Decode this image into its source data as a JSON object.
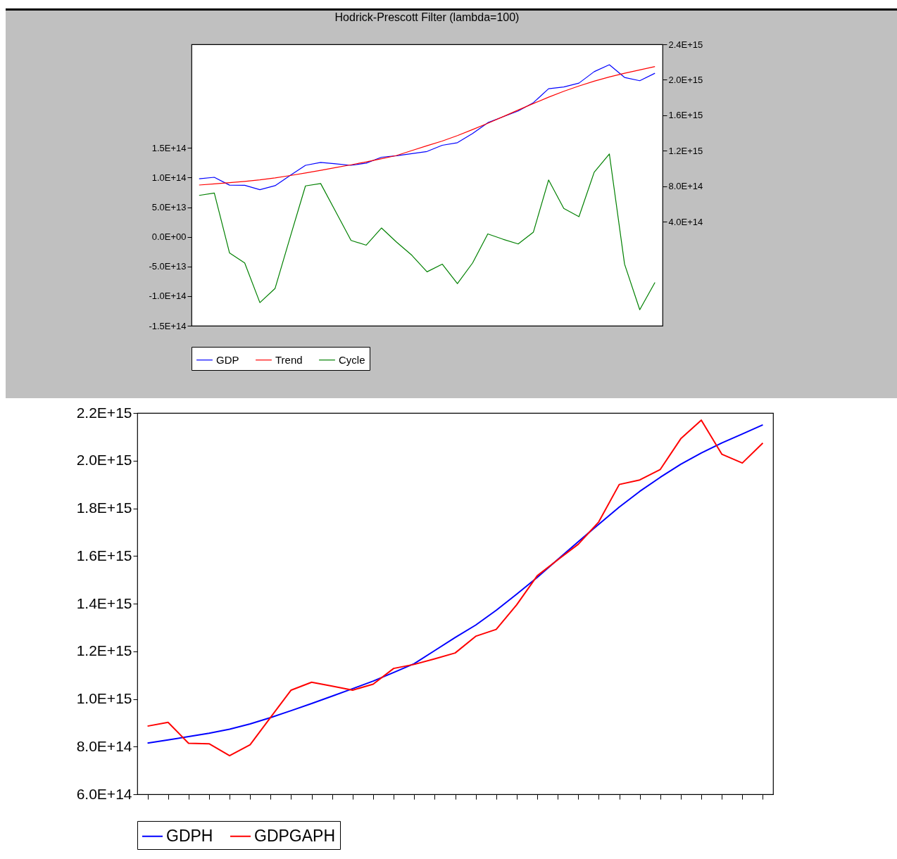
{
  "chart_data": [
    {
      "type": "line",
      "title": "Hodrick-Prescott Filter (lambda=100)",
      "categories": [
        null,
        null,
        null,
        null,
        null,
        null,
        null,
        null,
        null,
        null,
        null,
        null,
        null,
        null,
        null,
        null,
        null,
        null,
        null,
        null,
        null,
        null,
        null,
        null,
        null,
        null,
        null,
        null,
        null,
        null,
        null
      ],
      "series": [
        {
          "name": "GDP",
          "color": "#0000ff",
          "axis": "y2",
          "values": [
            886000000000000.0,
            902000000000000.0,
            814000000000000.0,
            812000000000000.0,
            762000000000000.0,
            808000000000000.0,
            923000000000000.0,
            1037000000000000.0,
            1070000000000000.0,
            1054000000000000.0,
            1037000000000000.0,
            1062000000000000.0,
            1128000000000000.0,
            1145000000000000.0,
            1168000000000000.0,
            1193000000000000.0,
            1263000000000000.0,
            1292000000000000.0,
            1395000000000000.0,
            1517000000000000.0,
            1584000000000000.0,
            1649000000000000.0,
            1743000000000000.0,
            1900000000000000.0,
            1919000000000000.0,
            1963000000000000.0,
            2092000000000000.0,
            2170000000000000.0,
            2027000000000000.0,
            1990000000000000.0,
            2074000000000000.0
          ]
        },
        {
          "name": "Trend",
          "color": "#ff0000",
          "axis": "y2",
          "values": [
            815000000000000.0,
            828000000000000.0,
            842000000000000.0,
            856000000000000.0,
            873000000000000.0,
            895000000000000.0,
            922000000000000.0,
            951000000000000.0,
            981000000000000.0,
            1012000000000000.0,
            1043000000000000.0,
            1075000000000000.0,
            1111000000000000.0,
            1148000000000000.0,
            1203000000000000.0,
            1258000000000000.0,
            1310000000000000.0,
            1372000000000000.0,
            1440000000000000.0,
            1510000000000000.0,
            1585000000000000.0,
            1660000000000000.0,
            1733000000000000.0,
            1805000000000000.0,
            1871000000000000.0,
            1930000000000000.0,
            1985000000000000.0,
            2032000000000000.0,
            2074000000000000.0,
            2112000000000000.0,
            2150000000000000.0
          ]
        },
        {
          "name": "Cycle",
          "color": "#008000",
          "axis": "y",
          "values": [
            70000000000000.0,
            74000000000000.0,
            -27000000000000.0,
            -44000000000000.0,
            -111000000000000.0,
            -87000000000000.0,
            0,
            86000000000000.0,
            90000000000000.0,
            42000000000000.0,
            -6000000000000.0,
            -14000000000000.0,
            15000000000000.0,
            -9000000000000.0,
            -31000000000000.0,
            -59000000000000.0,
            -46000000000000.0,
            -79000000000000.0,
            -44000000000000.0,
            5000000000000.0,
            -4000000000000.0,
            -12000000000000.0,
            8000000000000.0,
            96000000000000.0,
            48000000000000.0,
            34000000000000.0,
            109000000000000.0,
            140000000000000.0,
            -46000000000000.0,
            -123000000000000.0,
            -77000000000000.0
          ]
        }
      ],
      "ylim": [
        -150000000000000.0,
        325000000000000.0
      ],
      "yticks": [
        {
          "value": -150000000000000.0,
          "label": "-1.5E+14"
        },
        {
          "value": -100000000000000.0,
          "label": "-1.0E+14"
        },
        {
          "value": -50000000000000.0,
          "label": "-5.0E+13"
        },
        {
          "value": 0,
          "label": "0.0E+00"
        },
        {
          "value": 50000000000000.0,
          "label": "5.0E+13"
        },
        {
          "value": 100000000000000.0,
          "label": "1.0E+14"
        },
        {
          "value": 150000000000000.0,
          "label": "1.5E+14"
        }
      ],
      "y2lim": [
        -770000000000000.0,
        2400000000000000.0
      ],
      "y2ticks": [
        {
          "value": 400000000000000.0,
          "label": "4.0E+14"
        },
        {
          "value": 800000000000000.0,
          "label": "8.0E+14"
        },
        {
          "value": 1200000000000000.0,
          "label": "1.2E+15"
        },
        {
          "value": 1600000000000000.0,
          "label": "1.6E+15"
        },
        {
          "value": 2000000000000000.0,
          "label": "2.0E+15"
        },
        {
          "value": 2400000000000000.0,
          "label": "2.4E+15"
        }
      ],
      "legend": "bottom",
      "tick_labels": "y"
    },
    {
      "type": "line",
      "categories": [
        null,
        null,
        null,
        null,
        null,
        null,
        null,
        null,
        null,
        null,
        null,
        null,
        null,
        null,
        null,
        null,
        null,
        null,
        null,
        null,
        null,
        null,
        null,
        null,
        null,
        null,
        null,
        null,
        null,
        null,
        null
      ],
      "series": [
        {
          "name": "GDPH",
          "color": "#0000ff",
          "values": [
            815000000000000.0,
            828000000000000.0,
            842000000000000.0,
            856000000000000.0,
            873000000000000.0,
            895000000000000.0,
            922000000000000.0,
            951000000000000.0,
            981000000000000.0,
            1012000000000000.0,
            1043000000000000.0,
            1075000000000000.0,
            1111000000000000.0,
            1148000000000000.0,
            1203000000000000.0,
            1258000000000000.0,
            1310000000000000.0,
            1372000000000000.0,
            1440000000000000.0,
            1510000000000000.0,
            1585000000000000.0,
            1660000000000000.0,
            1733000000000000.0,
            1805000000000000.0,
            1871000000000000.0,
            1930000000000000.0,
            1985000000000000.0,
            2032000000000000.0,
            2074000000000000.0,
            2112000000000000.0,
            2150000000000000.0
          ]
        },
        {
          "name": "GDPGAPH",
          "color": "#ff0000",
          "values": [
            886000000000000.0,
            902000000000000.0,
            814000000000000.0,
            812000000000000.0,
            762000000000000.0,
            808000000000000.0,
            923000000000000.0,
            1037000000000000.0,
            1070000000000000.0,
            1054000000000000.0,
            1037000000000000.0,
            1062000000000000.0,
            1128000000000000.0,
            1145000000000000.0,
            1168000000000000.0,
            1193000000000000.0,
            1263000000000000.0,
            1292000000000000.0,
            1395000000000000.0,
            1517000000000000.0,
            1584000000000000.0,
            1649000000000000.0,
            1743000000000000.0,
            1900000000000000.0,
            1919000000000000.0,
            1963000000000000.0,
            2092000000000000.0,
            2170000000000000.0,
            2027000000000000.0,
            1990000000000000.0,
            2074000000000000.0
          ]
        }
      ],
      "ylim": [
        600000000000000.0,
        2200000000000000.0
      ],
      "yticks": [
        {
          "value": 600000000000000.0,
          "label": "6.0E+14"
        },
        {
          "value": 800000000000000.0,
          "label": "8.0E+14"
        },
        {
          "value": 1000000000000000.0,
          "label": "1.0E+15"
        },
        {
          "value": 1200000000000000.0,
          "label": "1.2E+15"
        },
        {
          "value": 1400000000000000.0,
          "label": "1.4E+15"
        },
        {
          "value": 1600000000000000.0,
          "label": "1.6E+15"
        },
        {
          "value": 1800000000000000.0,
          "label": "1.8E+15"
        },
        {
          "value": 2000000000000000.0,
          "label": "2.0E+15"
        },
        {
          "value": 2200000000000000.0,
          "label": "2.2E+15"
        }
      ],
      "legend": "bottom",
      "tick_labels": "y"
    }
  ]
}
